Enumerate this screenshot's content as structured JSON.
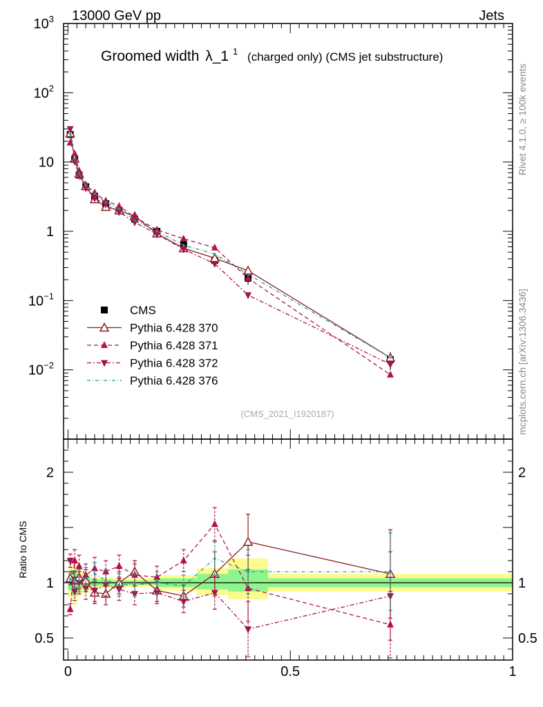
{
  "header": {
    "left": "13000 GeV pp",
    "right": "Jets"
  },
  "title": {
    "main": "Groomed width",
    "symbol": "λ_1",
    "superscript": "1",
    "sub": "(charged only) (CMS jet substructure)"
  },
  "side_labels": {
    "rivet": "Rivet 4.1.0, ≥ 100k events",
    "mcplots": "mcplots.cern.ch [arXiv:1306.3436]"
  },
  "analysis_id": "(CMS_2021_I1920187)",
  "ratio_ylabel": "Ratio to CMS",
  "colors": {
    "data": "#000000",
    "p370": "#8b1a1a",
    "p371": "#b0114f",
    "p372": "#a5124d",
    "p376": "#1a9a8a",
    "band_inner": "#8ef48e",
    "band_outer": "#fbfb8e"
  },
  "chart_data": {
    "type": "scatter",
    "main": {
      "yscale": "log",
      "ylim": [
        0.001,
        1000
      ],
      "y_ticks": [
        {
          "value": 0.01,
          "base": "10",
          "exp": "−2"
        },
        {
          "value": 0.1,
          "base": "10",
          "exp": "−1"
        },
        {
          "value": 1,
          "base": "1",
          "exp": ""
        },
        {
          "value": 10,
          "base": "10",
          "exp": ""
        },
        {
          "value": 100,
          "base": "10",
          "exp": "2"
        },
        {
          "value": 1000,
          "base": "10",
          "exp": "3"
        }
      ]
    },
    "ratio": {
      "ylim": [
        0.3,
        2.3
      ],
      "y_ticks": [
        {
          "value": 0.5,
          "label": "0.5"
        },
        {
          "value": 1,
          "label": "1"
        },
        {
          "value": 2,
          "label": "2"
        }
      ],
      "band": [
        {
          "x0": 0.0,
          "x1": 0.01,
          "in": [
            0.93,
            1.07
          ],
          "out": [
            0.87,
            1.13
          ]
        },
        {
          "x0": 0.01,
          "x1": 0.02,
          "in": [
            0.88,
            1.1
          ],
          "out": [
            0.8,
            1.18
          ]
        },
        {
          "x0": 0.02,
          "x1": 0.03,
          "in": [
            0.93,
            1.07
          ],
          "out": [
            0.88,
            1.13
          ]
        },
        {
          "x0": 0.03,
          "x1": 0.05,
          "in": [
            0.95,
            1.05
          ],
          "out": [
            0.91,
            1.09
          ]
        },
        {
          "x0": 0.05,
          "x1": 0.1,
          "in": [
            0.97,
            1.03
          ],
          "out": [
            0.95,
            1.05
          ]
        },
        {
          "x0": 0.1,
          "x1": 0.2,
          "in": [
            0.98,
            1.02
          ],
          "out": [
            0.96,
            1.04
          ]
        },
        {
          "x0": 0.2,
          "x1": 0.29,
          "in": [
            0.96,
            1.04
          ],
          "out": [
            0.93,
            1.07
          ]
        },
        {
          "x0": 0.29,
          "x1": 0.36,
          "in": [
            0.94,
            1.08
          ],
          "out": [
            0.89,
            1.13
          ]
        },
        {
          "x0": 0.36,
          "x1": 0.45,
          "in": [
            0.92,
            1.12
          ],
          "out": [
            0.85,
            1.22
          ]
        },
        {
          "x0": 0.45,
          "x1": 1.0,
          "in": [
            0.96,
            1.04
          ],
          "out": [
            0.92,
            1.08
          ]
        }
      ]
    },
    "x": {
      "xlim": [
        -0.01,
        1.0
      ],
      "ticks": [
        {
          "value": 0,
          "label": "0"
        },
        {
          "value": 0.5,
          "label": "0.5"
        },
        {
          "value": 1,
          "label": "1"
        }
      ]
    },
    "series": [
      {
        "name": "CMS",
        "key": "data",
        "marker": "square",
        "dash": "",
        "show_line": false,
        "x": [
          0.005,
          0.015,
          0.025,
          0.04,
          0.06,
          0.085,
          0.115,
          0.15,
          0.2,
          0.26,
          0.33,
          0.405,
          0.725
        ],
        "y": [
          25,
          11,
          6.5,
          4.4,
          3.2,
          2.5,
          2.0,
          1.5,
          1.0,
          0.65,
          0.38,
          0.21,
          0.014
        ],
        "err": [
          3,
          1.2,
          0.7,
          0.4,
          0.3,
          0.25,
          0.2,
          0.15,
          0.1,
          0.07,
          0.05,
          0.04,
          0.004
        ]
      },
      {
        "name": "Pythia 6.428 370",
        "key": "p370",
        "marker": "triangle-open",
        "dash": "",
        "show_line": true,
        "x": [
          0.005,
          0.015,
          0.025,
          0.04,
          0.06,
          0.085,
          0.115,
          0.15,
          0.2,
          0.26,
          0.33,
          0.405,
          0.725
        ],
        "y": [
          26,
          11.2,
          6.8,
          4.5,
          2.9,
          2.25,
          2.0,
          1.65,
          0.93,
          0.57,
          0.41,
          0.27,
          0.015
        ],
        "ratio": [
          1.04,
          1.02,
          1.05,
          1.02,
          0.91,
          0.9,
          1.0,
          1.1,
          0.93,
          0.88,
          1.08,
          1.37,
          1.08
        ],
        "ratio_err": [
          0.06,
          0.08,
          0.1,
          0.1,
          0.1,
          0.1,
          0.1,
          0.1,
          0.1,
          0.1,
          0.2,
          0.25,
          0.4
        ]
      },
      {
        "name": "Pythia 6.428 371",
        "key": "p371",
        "marker": "triangle-up",
        "dash": "6,4",
        "show_line": true,
        "x": [
          0.005,
          0.015,
          0.025,
          0.04,
          0.06,
          0.085,
          0.115,
          0.15,
          0.2,
          0.26,
          0.33,
          0.405,
          0.725
        ],
        "y": [
          19,
          13.2,
          7.5,
          4.7,
          3.6,
          2.75,
          2.3,
          1.6,
          1.05,
          0.78,
          0.58,
          0.21,
          0.0085
        ],
        "ratio": [
          0.76,
          1.2,
          1.15,
          1.07,
          1.13,
          1.1,
          1.15,
          1.07,
          1.05,
          1.2,
          1.53,
          0.95,
          0.62
        ],
        "ratio_err": [
          0.05,
          0.1,
          0.1,
          0.1,
          0.1,
          0.1,
          0.1,
          0.1,
          0.1,
          0.1,
          0.15,
          0.3,
          0.3
        ]
      },
      {
        "name": "Pythia 6.428 372",
        "key": "p372",
        "marker": "triangle-down",
        "dash": "6,3,2,3",
        "show_line": true,
        "x": [
          0.005,
          0.015,
          0.025,
          0.04,
          0.06,
          0.085,
          0.115,
          0.15,
          0.2,
          0.26,
          0.33,
          0.405,
          0.725
        ],
        "y": [
          30,
          10.2,
          6.3,
          4.2,
          3.0,
          2.45,
          1.9,
          1.35,
          0.91,
          0.55,
          0.34,
          0.12,
          0.012
        ],
        "ratio": [
          1.2,
          0.92,
          1.0,
          0.95,
          0.93,
          0.98,
          0.94,
          0.9,
          0.91,
          0.83,
          0.91,
          0.58,
          0.88
        ],
        "ratio_err": [
          0.06,
          0.08,
          0.1,
          0.1,
          0.1,
          0.1,
          0.1,
          0.1,
          0.1,
          0.1,
          0.15,
          0.25,
          0.4
        ]
      },
      {
        "name": "Pythia 6.428 376",
        "key": "p376",
        "marker": "dot",
        "dash": "5,3,1,3",
        "show_line": true,
        "x": [
          0.005,
          0.015,
          0.025,
          0.04,
          0.06,
          0.085,
          0.115,
          0.15,
          0.2,
          0.26,
          0.33,
          0.405,
          0.725
        ],
        "y": [
          25.5,
          11.2,
          6.8,
          4.6,
          3.5,
          2.6,
          2.1,
          1.45,
          1.0,
          0.63,
          0.47,
          0.24,
          0.015
        ],
        "ratio": [
          1.03,
          1.03,
          1.02,
          1.04,
          1.08,
          1.02,
          0.98,
          0.98,
          1.0,
          0.97,
          1.22,
          1.1,
          1.1
        ],
        "ratio_err": [
          0.05,
          0.08,
          0.1,
          0.1,
          0.1,
          0.1,
          0.1,
          0.1,
          0.1,
          0.1,
          0.15,
          0.2,
          0.35
        ]
      }
    ]
  }
}
